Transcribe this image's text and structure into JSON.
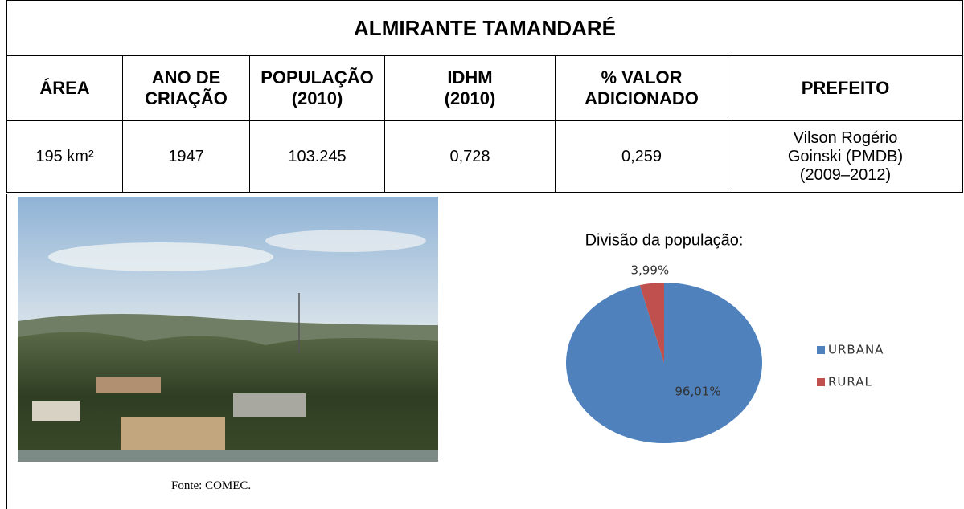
{
  "title": "ALMIRANTE TAMANDARÉ",
  "table": {
    "header": [
      "ÁREA",
      "ANO DE\nCRIAÇÃO",
      "POPULAÇÃO\n(2010)",
      "IDHM\n(2010)",
      "% VALOR\nADICIONADO",
      "PREFEITO"
    ],
    "rows": [
      [
        "195 km²",
        "1947",
        "103.245",
        "0,728",
        "0,259",
        "Vilson Rogério\nGoinski (PMDB)\n(2009–2012)"
      ]
    ]
  },
  "photo": {
    "caption": "Fonte: COMEC."
  },
  "chart_data": {
    "type": "pie",
    "title": "Divisão da população:",
    "categories": [
      "URBANA",
      "RURAL"
    ],
    "values": [
      96.01,
      3.99
    ],
    "value_labels": [
      "96,01%",
      "3,99%"
    ],
    "colors": [
      "#4f81bd",
      "#c0504d"
    ],
    "legend": "right"
  }
}
